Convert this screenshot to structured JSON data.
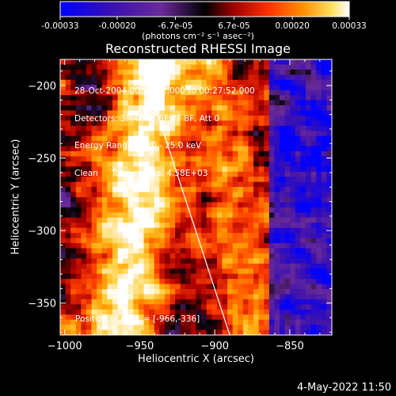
{
  "colorbar": {
    "ticks": [
      "-0.00033",
      "-0.00020",
      "-6.7e-05",
      "6.7e-05",
      "0.00020",
      "0.00033"
    ],
    "tick_values": [
      -0.00033,
      -0.0002,
      -6.7e-05,
      6.7e-05,
      0.0002,
      0.00033
    ],
    "range": [
      -0.00033,
      0.00033
    ],
    "units": "(photons cm⁻² s⁻¹ asec⁻²)"
  },
  "chart_data": {
    "type": "heatmap",
    "title": "Reconstructed RHESSI Image",
    "xlabel": "Heliocentric X (arcsec)",
    "ylabel": "Heliocentric Y (arcsec)",
    "xlim": [
      -1003,
      -822
    ],
    "ylim": [
      -372,
      -182
    ],
    "x_ticks": [
      -1000,
      -950,
      -900,
      -850
    ],
    "y_ticks": [
      -200,
      -250,
      -300,
      -350
    ],
    "x_tick_labels": [
      "−1000",
      "−950",
      "−900",
      "−850"
    ],
    "y_tick_labels": [
      "−200",
      "−250",
      "−300",
      "−350"
    ],
    "annotations": [
      "28-Oct-2004 00:21:52.000 to 00:27:52.000",
      "Detectors: 3F 4F 5F 6F 7F 8F, Att 0",
      "Energy Range: 12.0 - 25.0 keV",
      "Clean     Total counts: 4.58E+03"
    ],
    "peak_label": "Position of Peak = [-966,-336]",
    "peak": [
      -966,
      -336
    ],
    "limb_line": [
      [
        -950,
        -182
      ],
      [
        -890,
        -372
      ]
    ],
    "colormap": [
      "#0000ff",
      "#3a10b0",
      "#6a2a9a",
      "#000000",
      "#b00000",
      "#ff4000",
      "#ff9a00",
      "#ffd040",
      "#ffffff"
    ]
  },
  "footer": {
    "timestamp": "4-May-2022 11:50"
  }
}
